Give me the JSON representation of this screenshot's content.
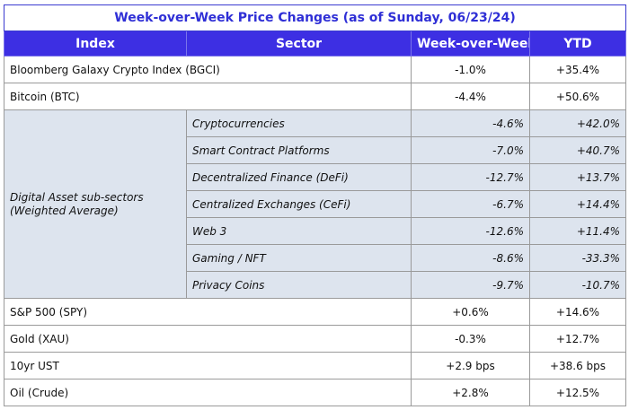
{
  "title": "Week-over-Week Price Changes (as of Sunday, 06/23/24)",
  "headers": [
    "Index",
    "Sector",
    "Week-over-Week",
    "YTD"
  ],
  "top_rows": [
    {
      "index": "Bloomberg Galaxy Crypto Index (BGCI)",
      "wow": "-1.0%",
      "ytd": "+35.4%"
    },
    {
      "index": "Bitcoin (BTC)",
      "wow": "-4.4%",
      "ytd": "+50.6%"
    }
  ],
  "subsector_group": {
    "label": "Digital Asset sub-sectors (Weighted Average)",
    "rows": [
      {
        "sector": "Cryptocurrencies",
        "wow": "-4.6%",
        "ytd": "+42.0%"
      },
      {
        "sector": "Smart Contract Platforms",
        "wow": "-7.0%",
        "ytd": "+40.7%"
      },
      {
        "sector": "Decentralized Finance (DeFi)",
        "wow": "-12.7%",
        "ytd": "+13.7%"
      },
      {
        "sector": "Centralized Exchanges (CeFi)",
        "wow": "-6.7%",
        "ytd": "+14.4%"
      },
      {
        "sector": "Web 3",
        "wow": "-12.6%",
        "ytd": "+11.4%"
      },
      {
        "sector": "Gaming / NFT",
        "wow": "-8.6%",
        "ytd": "-33.3%"
      },
      {
        "sector": "Privacy Coins",
        "wow": "-9.7%",
        "ytd": "-10.7%"
      }
    ]
  },
  "bottom_rows": [
    {
      "index": "S&P 500 (SPY)",
      "wow": "+0.6%",
      "ytd": "+14.6%"
    },
    {
      "index": "Gold (XAU)",
      "wow": "-0.3%",
      "ytd": "+12.7%"
    },
    {
      "index": "10yr UST",
      "wow": "+2.9 bps",
      "ytd": "+38.6 bps"
    },
    {
      "index": "Oil (Crude)",
      "wow": "+2.8%",
      "ytd": "+12.5%"
    }
  ],
  "colors": {
    "header_bg": "#3d2fe3",
    "title_text": "#2f2fd6",
    "subsector_bg": "#dde4ee"
  }
}
